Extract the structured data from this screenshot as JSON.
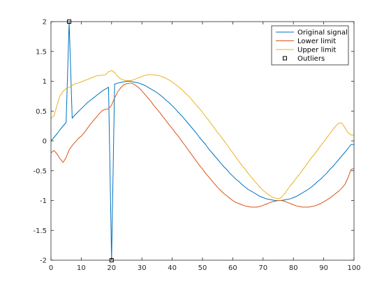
{
  "chart_data": {
    "type": "line",
    "title": "",
    "xlabel": "",
    "ylabel": "",
    "xlim": [
      0,
      100
    ],
    "ylim": [
      -2,
      2
    ],
    "xticks": [
      0,
      10,
      20,
      30,
      40,
      50,
      60,
      70,
      80,
      90,
      100
    ],
    "yticks": [
      -2,
      -1.5,
      -1,
      -0.5,
      0,
      0.5,
      1,
      1.5,
      2
    ],
    "xtick_labels": [
      "0",
      "10",
      "20",
      "30",
      "40",
      "50",
      "60",
      "70",
      "80",
      "90",
      "100"
    ],
    "ytick_labels": [
      "-2",
      "-1.5",
      "-1",
      "-0.5",
      "0",
      "0.5",
      "1",
      "1.5",
      "2"
    ],
    "grid": false,
    "legend_position": "top-right",
    "series": [
      {
        "name": "Original signal",
        "color": "#0072BD",
        "x": [
          0,
          1,
          2,
          3,
          4,
          5,
          6,
          7,
          8,
          9,
          10,
          11,
          12,
          13,
          14,
          15,
          16,
          17,
          18,
          19,
          20,
          21,
          22,
          23,
          24,
          25,
          26,
          27,
          28,
          29,
          30,
          31,
          32,
          33,
          34,
          35,
          36,
          37,
          38,
          39,
          40,
          41,
          42,
          43,
          44,
          45,
          46,
          47,
          48,
          49,
          50,
          51,
          52,
          53,
          54,
          55,
          56,
          57,
          58,
          59,
          60,
          61,
          62,
          63,
          64,
          65,
          66,
          67,
          68,
          69,
          70,
          71,
          72,
          73,
          74,
          75,
          76,
          77,
          78,
          79,
          80,
          81,
          82,
          83,
          84,
          85,
          86,
          87,
          88,
          89,
          90,
          91,
          92,
          93,
          94,
          95,
          96,
          97,
          98,
          99,
          100
        ],
        "y": [
          0.0,
          0.06,
          0.12,
          0.19,
          0.25,
          0.31,
          2.0,
          0.38,
          0.44,
          0.49,
          0.54,
          0.59,
          0.64,
          0.68,
          0.72,
          0.76,
          0.8,
          0.84,
          0.87,
          0.9,
          -2.0,
          0.95,
          0.97,
          0.98,
          0.99,
          1.0,
          1.0,
          0.99,
          0.98,
          0.97,
          0.95,
          0.93,
          0.9,
          0.87,
          0.84,
          0.81,
          0.77,
          0.73,
          0.68,
          0.64,
          0.59,
          0.54,
          0.48,
          0.43,
          0.37,
          0.31,
          0.25,
          0.19,
          0.13,
          0.06,
          0.0,
          -0.06,
          -0.13,
          -0.19,
          -0.25,
          -0.31,
          -0.37,
          -0.43,
          -0.48,
          -0.54,
          -0.59,
          -0.64,
          -0.68,
          -0.73,
          -0.77,
          -0.81,
          -0.84,
          -0.87,
          -0.9,
          -0.93,
          -0.95,
          -0.97,
          -0.98,
          -0.99,
          -1.0,
          -1.0,
          -1.0,
          -0.99,
          -0.98,
          -0.97,
          -0.95,
          -0.93,
          -0.9,
          -0.87,
          -0.84,
          -0.81,
          -0.77,
          -0.73,
          -0.68,
          -0.64,
          -0.59,
          -0.54,
          -0.48,
          -0.43,
          -0.37,
          -0.31,
          -0.25,
          -0.19,
          -0.13,
          -0.06,
          -0.06
        ]
      },
      {
        "name": "Lower limit",
        "color": "#D95319",
        "x": [
          0,
          1,
          2,
          3,
          4,
          5,
          6,
          7,
          8,
          9,
          10,
          11,
          12,
          13,
          14,
          15,
          16,
          17,
          18,
          19,
          20,
          21,
          22,
          23,
          24,
          25,
          26,
          27,
          28,
          29,
          30,
          31,
          32,
          33,
          34,
          35,
          36,
          37,
          38,
          39,
          40,
          41,
          42,
          43,
          44,
          45,
          46,
          47,
          48,
          49,
          50,
          51,
          52,
          53,
          54,
          55,
          56,
          57,
          58,
          59,
          60,
          61,
          62,
          63,
          64,
          65,
          66,
          67,
          68,
          69,
          70,
          71,
          72,
          73,
          74,
          75,
          76,
          77,
          78,
          79,
          80,
          81,
          82,
          83,
          84,
          85,
          86,
          87,
          88,
          89,
          90,
          91,
          92,
          93,
          94,
          95,
          96,
          97,
          98,
          99,
          100
        ],
        "y": [
          -0.2,
          -0.16,
          -0.22,
          -0.3,
          -0.36,
          -0.28,
          -0.15,
          -0.08,
          -0.02,
          0.04,
          0.08,
          0.14,
          0.21,
          0.28,
          0.34,
          0.4,
          0.46,
          0.51,
          0.53,
          0.54,
          0.6,
          0.72,
          0.82,
          0.89,
          0.94,
          0.96,
          0.97,
          0.96,
          0.93,
          0.89,
          0.84,
          0.78,
          0.72,
          0.66,
          0.59,
          0.53,
          0.47,
          0.4,
          0.34,
          0.27,
          0.21,
          0.14,
          0.08,
          0.01,
          -0.06,
          -0.13,
          -0.2,
          -0.27,
          -0.34,
          -0.41,
          -0.47,
          -0.54,
          -0.6,
          -0.66,
          -0.72,
          -0.78,
          -0.83,
          -0.88,
          -0.92,
          -0.96,
          -1.0,
          -1.03,
          -1.05,
          -1.07,
          -1.09,
          -1.1,
          -1.11,
          -1.11,
          -1.11,
          -1.1,
          -1.08,
          -1.06,
          -1.04,
          -1.02,
          -1.01,
          -1.0,
          -1.0,
          -1.01,
          -1.03,
          -1.05,
          -1.07,
          -1.09,
          -1.1,
          -1.11,
          -1.11,
          -1.11,
          -1.1,
          -1.09,
          -1.07,
          -1.05,
          -1.02,
          -0.99,
          -0.96,
          -0.92,
          -0.88,
          -0.84,
          -0.79,
          -0.73,
          -0.62,
          -0.48,
          -0.46
        ]
      },
      {
        "name": "Upper limit",
        "color": "#EDB120",
        "x": [
          0,
          1,
          2,
          3,
          4,
          5,
          6,
          7,
          8,
          9,
          10,
          11,
          12,
          13,
          14,
          15,
          16,
          17,
          18,
          19,
          20,
          21,
          22,
          23,
          24,
          25,
          26,
          27,
          28,
          29,
          30,
          31,
          32,
          33,
          34,
          35,
          36,
          37,
          38,
          39,
          40,
          41,
          42,
          43,
          44,
          45,
          46,
          47,
          48,
          49,
          50,
          51,
          52,
          53,
          54,
          55,
          56,
          57,
          58,
          59,
          60,
          61,
          62,
          63,
          64,
          65,
          66,
          67,
          68,
          69,
          70,
          71,
          72,
          73,
          74,
          75,
          76,
          77,
          78,
          79,
          80,
          81,
          82,
          83,
          84,
          85,
          86,
          87,
          88,
          89,
          90,
          91,
          92,
          93,
          94,
          95,
          96,
          97,
          98,
          99,
          100
        ],
        "y": [
          0.38,
          0.42,
          0.6,
          0.76,
          0.83,
          0.88,
          0.9,
          0.93,
          0.96,
          0.97,
          0.99,
          1.01,
          1.03,
          1.05,
          1.07,
          1.09,
          1.1,
          1.1,
          1.11,
          1.16,
          1.18,
          1.15,
          1.08,
          1.04,
          1.02,
          1.01,
          1.01,
          1.02,
          1.04,
          1.06,
          1.08,
          1.1,
          1.11,
          1.11,
          1.11,
          1.1,
          1.09,
          1.07,
          1.05,
          1.02,
          0.99,
          0.95,
          0.91,
          0.87,
          0.82,
          0.77,
          0.72,
          0.66,
          0.6,
          0.54,
          0.48,
          0.41,
          0.35,
          0.28,
          0.21,
          0.14,
          0.08,
          0.01,
          -0.06,
          -0.13,
          -0.2,
          -0.27,
          -0.34,
          -0.41,
          -0.47,
          -0.54,
          -0.6,
          -0.66,
          -0.72,
          -0.78,
          -0.83,
          -0.87,
          -0.91,
          -0.94,
          -0.96,
          -0.97,
          -0.95,
          -0.89,
          -0.82,
          -0.75,
          -0.69,
          -0.62,
          -0.56,
          -0.49,
          -0.42,
          -0.35,
          -0.28,
          -0.22,
          -0.15,
          -0.08,
          -0.02,
          0.05,
          0.12,
          0.19,
          0.25,
          0.3,
          0.3,
          0.22,
          0.14,
          0.1,
          0.1
        ]
      }
    ],
    "outliers": {
      "name": "Outliers",
      "color": "#000000",
      "points": [
        {
          "x": 6,
          "y": 2
        },
        {
          "x": 20,
          "y": -2
        }
      ]
    }
  }
}
